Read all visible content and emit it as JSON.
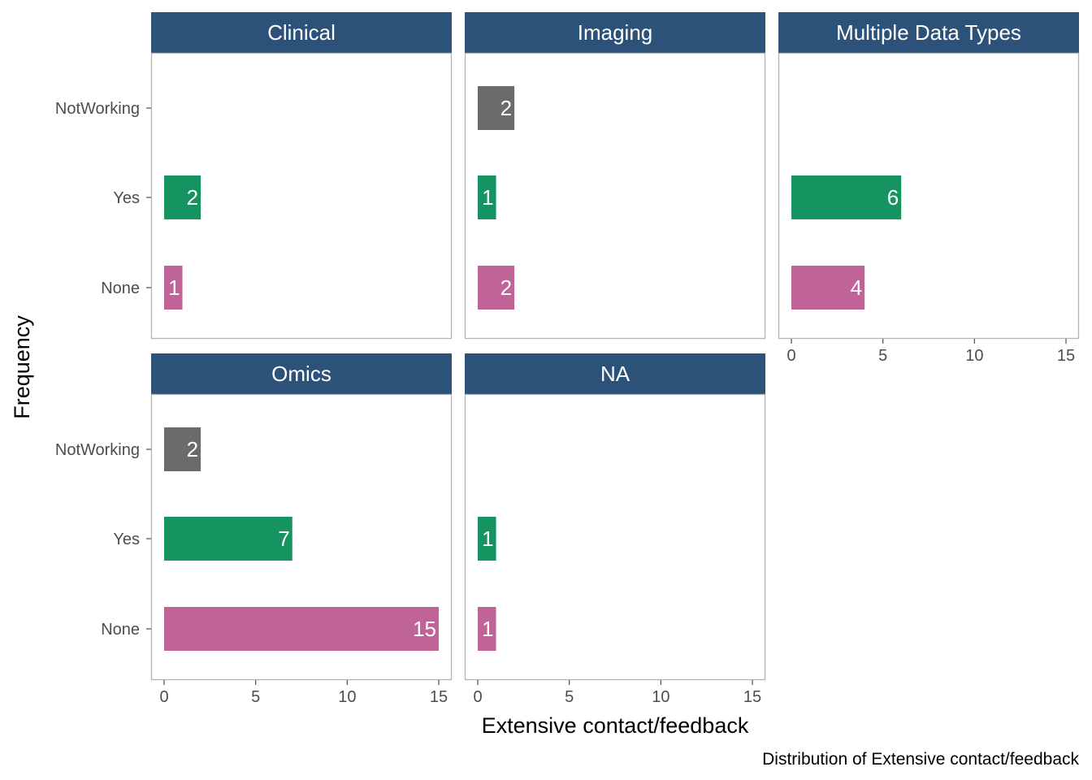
{
  "chart_data": {
    "type": "bar",
    "orientation": "horizontal",
    "facet_by": "data type",
    "xlabel": "Extensive contact/feedback",
    "ylabel": "Frequency",
    "caption": "Distribution of Extensive contact/feedback",
    "categories": [
      "NotWorking",
      "Yes",
      "None"
    ],
    "xlim": [
      0,
      15
    ],
    "xticks": [
      0,
      5,
      10,
      15
    ],
    "grid": false,
    "colors": {
      "NotWorking": "#6b6b6b",
      "Yes": "#159361",
      "None": "#c06396",
      "strip": "#2c5279",
      "panel_border": "#b3b3b3",
      "tick_text": "#4d4d4d"
    },
    "panels": [
      {
        "name": "Clinical",
        "values": {
          "Yes": 2,
          "None": 1
        }
      },
      {
        "name": "Imaging",
        "values": {
          "NotWorking": 2,
          "Yes": 1,
          "None": 2
        }
      },
      {
        "name": "Multiple Data Types",
        "values": {
          "Yes": 6,
          "None": 4
        }
      },
      {
        "name": "Omics",
        "values": {
          "NotWorking": 2,
          "Yes": 7,
          "None": 15
        }
      },
      {
        "name": "NA",
        "values": {
          "Yes": 1,
          "None": 1
        }
      }
    ]
  }
}
